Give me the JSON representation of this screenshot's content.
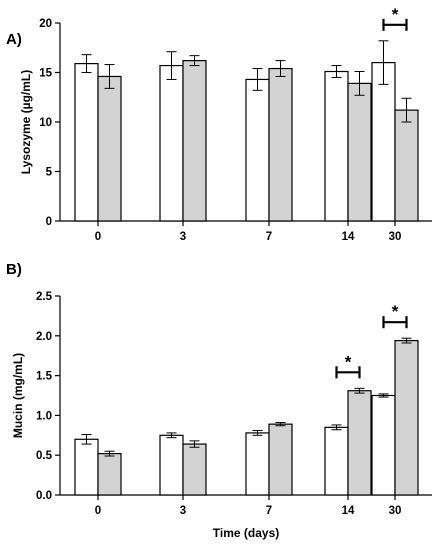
{
  "colors": {
    "control_fill": "#ffffff",
    "treatment_fill": "#d3d3d3",
    "bar_stroke": "#000000"
  },
  "chart_data": [
    {
      "panel_label": "A)",
      "type": "bar",
      "categories": [
        "0",
        "3",
        "7",
        "14",
        "30"
      ],
      "ylabel": "Lysozyme (µg/mL)",
      "xlabel": "",
      "ylim": [
        0,
        20
      ],
      "yticks": [
        "0",
        "5",
        "10",
        "15",
        "20"
      ],
      "grid": false,
      "series": [
        {
          "values": [
            15.9,
            15.7,
            14.3,
            15.1,
            16.0
          ],
          "errors": [
            0.9,
            1.4,
            1.1,
            0.6,
            2.2
          ]
        },
        {
          "values": [
            14.6,
            16.2,
            15.4,
            13.9,
            11.2
          ],
          "errors": [
            1.2,
            0.5,
            0.8,
            1.2,
            1.2
          ]
        }
      ],
      "significance": [
        {
          "category": "30",
          "label": "*"
        }
      ]
    },
    {
      "panel_label": "B)",
      "type": "bar",
      "categories": [
        "0",
        "3",
        "7",
        "14",
        "30"
      ],
      "ylabel": "Mucin (mg/mL)",
      "xlabel": "Time (days)",
      "ylim": [
        0,
        2.5
      ],
      "yticks": [
        "0.0",
        "0.5",
        "1.0",
        "1.5",
        "2.0",
        "2.5"
      ],
      "grid": false,
      "series": [
        {
          "values": [
            0.7,
            0.75,
            0.78,
            0.85,
            1.25
          ],
          "errors": [
            0.06,
            0.03,
            0.03,
            0.03,
            0.02
          ]
        },
        {
          "values": [
            0.52,
            0.64,
            0.89,
            1.31,
            1.94
          ],
          "errors": [
            0.03,
            0.04,
            0.02,
            0.03,
            0.03
          ]
        }
      ],
      "significance": [
        {
          "category": "14",
          "label": "*"
        },
        {
          "category": "30",
          "label": "*"
        }
      ]
    }
  ]
}
